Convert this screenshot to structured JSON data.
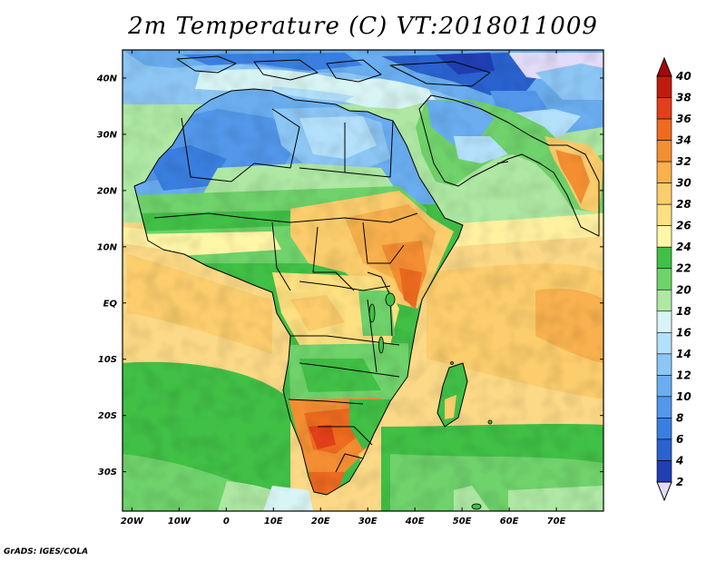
{
  "title": "2m Temperature (C) VT:2018011009",
  "credit": "GrADS: IGES/COLA",
  "map": {
    "lon_labels": [
      "20W",
      "10W",
      "0",
      "10E",
      "20E",
      "30E",
      "40E",
      "50E",
      "60E",
      "70E"
    ],
    "lat_labels": [
      "40N",
      "30N",
      "20N",
      "10N",
      "EQ",
      "10S",
      "20S",
      "30S"
    ],
    "lon_range": [
      -22,
      80
    ],
    "lat_range": [
      -37,
      45
    ]
  },
  "colorbar": {
    "levels": [
      "2",
      "4",
      "6",
      "8",
      "10",
      "12",
      "14",
      "16",
      "18",
      "20",
      "22",
      "24",
      "26",
      "28",
      "30",
      "32",
      "34",
      "36",
      "38",
      "40"
    ],
    "colors": [
      "#1b1f86",
      "#1f3fb3",
      "#2a62cf",
      "#3a7fe0",
      "#5297ea",
      "#6aaef0",
      "#8cc6f5",
      "#b3e0fa",
      "#d8f4f4",
      "#aee8a3",
      "#6fd26b",
      "#41c046",
      "#fff6a6",
      "#fde081",
      "#fbcd6c",
      "#f8b14e",
      "#f48e33",
      "#ee6b20",
      "#e0401a",
      "#c31a10",
      "#a40a0a"
    ],
    "under_color": "#e3dcf9",
    "over_color": "#a40a0a"
  }
}
